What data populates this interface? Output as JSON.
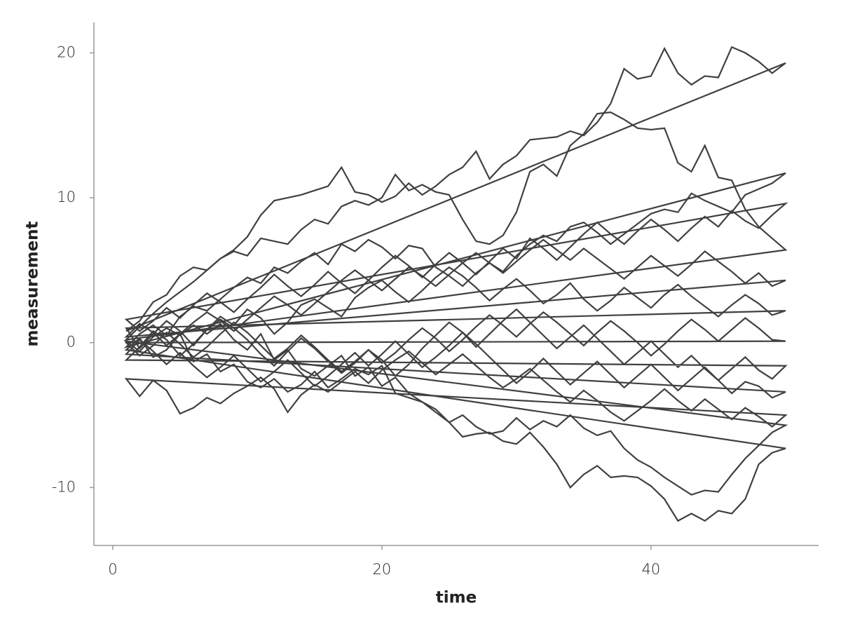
{
  "chart_data": {
    "type": "line",
    "x_label": "time",
    "y_label": "measurement",
    "x": [
      1,
      2,
      3,
      4,
      5,
      6,
      7,
      8,
      9,
      10,
      11,
      12,
      13,
      14,
      15,
      16,
      17,
      18,
      19,
      20,
      21,
      22,
      23,
      24,
      25,
      26,
      27,
      28,
      29,
      30,
      31,
      32,
      33,
      34,
      35,
      36,
      37,
      38,
      39,
      40,
      41,
      42,
      43,
      44,
      45,
      46,
      47,
      48,
      49,
      50
    ],
    "xlim": [
      -1.4,
      52.45
    ],
    "xticks": [
      0,
      20,
      40
    ],
    "ylim": [
      -14.0,
      22.1
    ],
    "yticks": [
      -10,
      0,
      10,
      20
    ],
    "grid": false,
    "closed": true,
    "series": [
      {
        "color": "#404040",
        "values": [
          0.8,
          1.5,
          2.8,
          3.3,
          4.6,
          5.2,
          5.0,
          5.8,
          6.4,
          7.3,
          8.8,
          9.8,
          10.0,
          10.2,
          10.5,
          10.8,
          12.1,
          10.4,
          10.2,
          9.7,
          10.1,
          11.0,
          10.2,
          10.8,
          11.6,
          12.1,
          13.2,
          11.3,
          12.3,
          12.9,
          14.0,
          14.1,
          14.2,
          14.6,
          14.3,
          15.2,
          16.5,
          18.9,
          18.2,
          18.4,
          20.3,
          18.6,
          17.8,
          18.4,
          18.3,
          20.4,
          20.0,
          19.4,
          18.6,
          19.3
        ]
      },
      {
        "color": "#404040",
        "values": [
          0.2,
          1.1,
          2.0,
          2.8,
          3.5,
          4.2,
          5.0,
          5.8,
          6.3,
          6.0,
          7.2,
          7.0,
          6.8,
          7.8,
          8.5,
          8.2,
          9.4,
          9.8,
          9.5,
          10.0,
          11.6,
          10.5,
          10.9,
          10.4,
          10.2,
          8.5,
          7.0,
          6.8,
          7.4,
          9.0,
          11.8,
          12.3,
          11.5,
          13.6,
          14.4,
          15.8,
          15.9,
          15.4,
          14.8,
          14.7,
          14.8,
          12.4,
          11.8,
          13.6,
          11.4,
          11.2,
          9.2,
          8.0,
          7.2,
          6.4
        ]
      },
      {
        "color": "#404040",
        "values": [
          -0.5,
          0.3,
          -1.0,
          -0.5,
          0.6,
          -1.3,
          -0.8,
          -2.0,
          -1.5,
          -2.7,
          -3.1,
          -2.5,
          -3.4,
          -2.9,
          -2.0,
          -3.1,
          -2.5,
          -1.8,
          -2.2,
          -1.6,
          -3.5,
          -3.8,
          -4.1,
          -4.6,
          -5.5,
          -6.5,
          -6.3,
          -6.2,
          -6.8,
          -7.0,
          -6.2,
          -7.2,
          -8.4,
          -10.0,
          -9.1,
          -8.5,
          -9.3,
          -9.2,
          -9.3,
          -9.9,
          -10.8,
          -12.3,
          -11.8,
          -12.3,
          -11.6,
          -11.8,
          -10.8,
          -8.4,
          -7.6,
          -7.3
        ]
      },
      {
        "color": "#404040",
        "values": [
          0.1,
          -0.6,
          0.4,
          1.0,
          0.5,
          1.2,
          0.6,
          1.3,
          0.2,
          -0.5,
          0.6,
          -1.2,
          -0.5,
          -1.8,
          -2.3,
          -1.6,
          -0.9,
          -2.3,
          -1.7,
          -3.0,
          -2.4,
          -3.5,
          -4.1,
          -4.8,
          -5.5,
          -5.0,
          -5.8,
          -6.3,
          -6.1,
          -5.2,
          -6.0,
          -5.4,
          -5.8,
          -5.0,
          -5.9,
          -6.4,
          -6.1,
          -7.3,
          -8.1,
          -8.6,
          -9.3,
          -9.9,
          -10.5,
          -10.2,
          -10.3,
          -9.1,
          -8.0,
          -7.1,
          -6.2,
          -5.7
        ]
      },
      {
        "color": "#404040",
        "values": [
          -0.3,
          0.6,
          1.2,
          0.5,
          1.8,
          2.5,
          2.2,
          3.0,
          3.8,
          4.5,
          4.1,
          5.2,
          4.8,
          5.6,
          6.2,
          5.4,
          6.8,
          6.3,
          7.1,
          6.6,
          5.8,
          6.7,
          6.5,
          5.2,
          4.6,
          3.9,
          4.8,
          5.5,
          4.9,
          6.0,
          6.8,
          7.4,
          7.0,
          8.0,
          8.3,
          7.6,
          6.8,
          7.5,
          8.2,
          8.9,
          9.2,
          9.0,
          10.3,
          9.8,
          9.4,
          9.0,
          10.2,
          10.6,
          11.0,
          11.7
        ]
      },
      {
        "color": "#404040",
        "values": [
          1.0,
          -0.4,
          0.6,
          1.5,
          0.8,
          -0.2,
          0.9,
          1.8,
          1.2,
          2.3,
          1.7,
          0.6,
          1.4,
          2.6,
          3.0,
          2.4,
          1.8,
          3.1,
          3.8,
          4.3,
          3.5,
          2.8,
          3.6,
          4.5,
          5.2,
          4.6,
          3.8,
          2.9,
          3.7,
          4.4,
          3.6,
          2.7,
          3.3,
          4.1,
          3.0,
          2.2,
          2.9,
          3.8,
          3.1,
          2.4,
          3.3,
          4.0,
          3.2,
          2.5,
          1.8,
          2.6,
          3.3,
          2.7,
          1.9,
          2.2
        ]
      },
      {
        "color": "#404040",
        "values": [
          -1.2,
          -0.3,
          0.8,
          0.2,
          -0.9,
          -0.1,
          0.9,
          1.6,
          1.0,
          0.2,
          -0.8,
          -1.6,
          -0.6,
          0.3,
          -0.4,
          -1.3,
          -2.1,
          -1.4,
          -0.5,
          -1.2,
          -2.3,
          -1.5,
          -0.4,
          0.5,
          1.4,
          0.7,
          -0.3,
          0.6,
          1.5,
          2.3,
          1.4,
          0.5,
          -0.4,
          0.4,
          1.2,
          0.3,
          -0.6,
          -1.5,
          -0.7,
          0.1,
          -0.8,
          -1.7,
          -0.9,
          -1.8,
          -2.6,
          -1.8,
          -1.0,
          -1.9,
          -2.5,
          -1.6
        ]
      },
      {
        "color": "#404040",
        "values": [
          0.4,
          1.3,
          0.7,
          -0.2,
          0.6,
          1.4,
          2.1,
          1.5,
          0.8,
          1.6,
          2.4,
          3.2,
          2.6,
          1.9,
          2.7,
          3.5,
          4.3,
          5.0,
          4.3,
          3.6,
          4.4,
          5.2,
          4.6,
          3.9,
          4.7,
          5.5,
          6.2,
          5.5,
          4.8,
          5.6,
          6.4,
          7.1,
          6.4,
          5.7,
          6.5,
          5.8,
          5.1,
          4.4,
          5.2,
          6.0,
          5.3,
          4.6,
          5.4,
          6.3,
          5.6,
          4.9,
          4.1,
          4.8,
          3.9,
          4.3
        ]
      },
      {
        "color": "#404040",
        "values": [
          -2.5,
          -3.7,
          -2.6,
          -3.3,
          -4.9,
          -4.5,
          -3.8,
          -4.2,
          -3.5,
          -3.0,
          -2.4,
          -3.2,
          -4.8,
          -3.6,
          -2.9,
          -3.4,
          -2.7,
          -2.0,
          -2.8,
          -1.9,
          -1.2,
          -0.6,
          -1.4,
          -2.2,
          -1.5,
          -0.8,
          -1.6,
          -2.4,
          -3.1,
          -2.5,
          -1.8,
          -2.6,
          -3.4,
          -4.1,
          -3.3,
          -4.0,
          -4.8,
          -5.4,
          -4.7,
          -4.0,
          -3.2,
          -4.0,
          -4.7,
          -3.9,
          -4.6,
          -5.3,
          -4.5,
          -5.1,
          -5.8,
          -5.0
        ]
      },
      {
        "color": "#404040",
        "values": [
          1.6,
          0.8,
          1.5,
          2.4,
          1.7,
          2.6,
          3.4,
          2.8,
          2.1,
          3.0,
          3.8,
          4.7,
          3.9,
          3.2,
          4.0,
          4.9,
          4.1,
          3.4,
          4.3,
          5.2,
          6.0,
          5.3,
          4.5,
          5.4,
          6.2,
          5.5,
          4.7,
          5.6,
          6.5,
          5.8,
          7.2,
          6.5,
          5.7,
          6.6,
          7.5,
          8.3,
          7.5,
          6.8,
          7.7,
          8.5,
          7.8,
          7.0,
          7.9,
          8.7,
          8.0,
          9.1,
          8.4,
          7.9,
          8.8,
          9.6
        ]
      },
      {
        "color": "#404040",
        "values": [
          0.0,
          -0.9,
          -0.2,
          0.7,
          -0.1,
          -1.0,
          -0.3,
          0.6,
          1.4,
          0.7,
          -0.2,
          -1.1,
          -0.4,
          0.5,
          -0.3,
          -1.2,
          -2.0,
          -1.3,
          -0.5,
          -1.4,
          -0.7,
          0.2,
          1.0,
          0.3,
          -0.6,
          0.2,
          1.1,
          1.9,
          1.2,
          0.4,
          1.3,
          2.1,
          1.4,
          0.6,
          -0.2,
          0.7,
          1.5,
          0.8,
          0.0,
          -0.9,
          -0.1,
          0.8,
          1.6,
          0.9,
          0.1,
          0.9,
          1.7,
          1.0,
          0.2,
          0.1
        ]
      },
      {
        "color": "#404040",
        "values": [
          -0.8,
          0.2,
          -0.6,
          -1.5,
          -0.7,
          -1.6,
          -2.4,
          -1.7,
          -0.9,
          -1.8,
          -2.7,
          -2.0,
          -1.2,
          -2.1,
          -3.0,
          -2.3,
          -1.5,
          -0.7,
          -1.6,
          -0.8,
          0.1,
          -0.8,
          -1.7,
          -1.0,
          -0.2,
          0.7,
          -0.1,
          -1.0,
          -1.9,
          -2.8,
          -2.0,
          -1.1,
          -2.0,
          -2.9,
          -2.1,
          -1.3,
          -2.2,
          -3.1,
          -2.3,
          -1.5,
          -2.4,
          -3.3,
          -2.5,
          -1.7,
          -2.6,
          -3.5,
          -2.7,
          -3.0,
          -3.8,
          -3.4
        ]
      }
    ]
  }
}
